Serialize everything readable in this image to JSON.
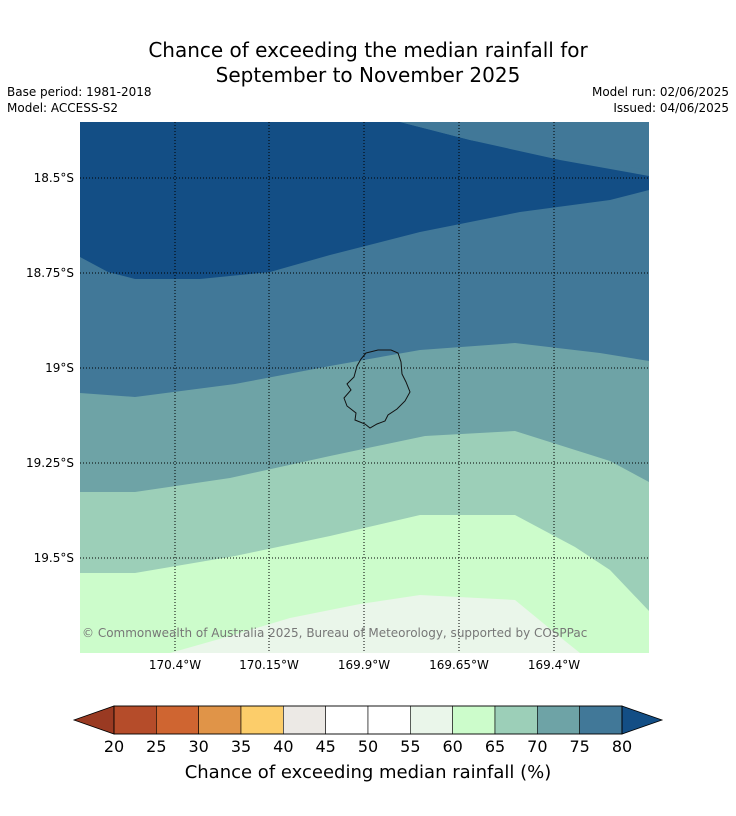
{
  "header": {
    "title_line1": "Chance of exceeding the median rainfall for",
    "title_line2": "September to November 2025",
    "base_period": "Base period: 1981-2018",
    "model": "Model: ACCESS-S2",
    "model_run": "Model run: 02/06/2025",
    "issued": "Issued: 04/06/2025"
  },
  "map": {
    "lat_labels": [
      "18.5°S",
      "18.75°S",
      "19°S",
      "19.25°S",
      "19.5°S"
    ],
    "lon_labels": [
      "170.4°W",
      "170.15°W",
      "169.9°W",
      "169.65°W",
      "169.4°W"
    ],
    "copyright": "© Commonwealth of Australia 2025, Bureau of Meteorology, supported by COSPPac",
    "feature": "island-outline",
    "gridlines": "dotted"
  },
  "colorbar": {
    "ticks": [
      "20",
      "25",
      "30",
      "35",
      "40",
      "45",
      "50",
      "55",
      "60",
      "65",
      "70",
      "75",
      "80"
    ],
    "label": "Chance of exceeding median rainfall (%)",
    "colors": {
      "under": "#9a3a22",
      "bands": [
        "#b54c2a",
        "#cf6531",
        "#e09448",
        "#fccd6a",
        "#ece9e5",
        "#ffffff",
        "#ffffff",
        "#eaf6ea",
        "#ccfccb",
        "#9ccfb8",
        "#6ea3a6",
        "#417898"
      ],
      "over": "#134e85"
    }
  }
}
